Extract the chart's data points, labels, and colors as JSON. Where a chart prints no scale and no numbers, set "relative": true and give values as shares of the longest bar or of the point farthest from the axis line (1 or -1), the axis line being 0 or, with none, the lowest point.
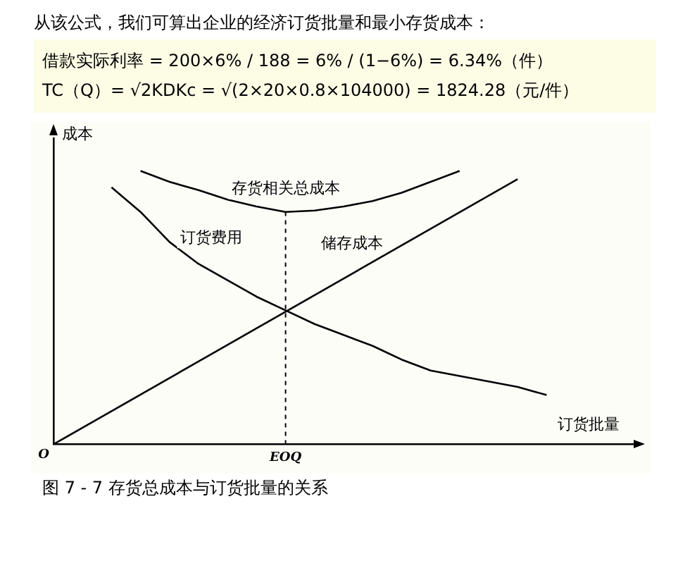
{
  "chart_data": {
    "type": "line",
    "relative": true,
    "title": "图 7 - 7 存货总成本与订货批量的关系",
    "annotations": [
      "从该公式，我们可算出企业的经济订货批量和最小存货成本：",
      "借款实际利率 = 200×6% / 188 = 6% / (1−6%) = 6.34%（件）",
      "TC（Q）= √2KDKc = √(2×20×0.8×104000) = 1824.28（元/件）",
      "O"
    ],
    "xlabel": "订货批量",
    "ylabel": "成本",
    "tick_labels": "x",
    "grid": false,
    "legend": false,
    "marker": "none",
    "categories": [
      null,
      null,
      null,
      null,
      null,
      null,
      null,
      null,
      null,
      null,
      null,
      null,
      null,
      null,
      null,
      null,
      null,
      null,
      null,
      null,
      null
    ],
    "series": [
      {
        "name": "存货相关总成本",
        "color": "#000000",
        "values": [
          null,
          null,
          null,
          1.0,
          0.96,
          0.93,
          0.895,
          0.87,
          0.85,
          0.855,
          0.87,
          0.89,
          0.92,
          0.96,
          1.0,
          null,
          null,
          null,
          null,
          null,
          null
        ]
      },
      {
        "name": "订货费用",
        "color": "#000000",
        "values": [
          null,
          null,
          0.94,
          0.85,
          0.74,
          0.66,
          0.6,
          0.54,
          0.49,
          0.44,
          0.4,
          0.36,
          0.31,
          0.27,
          0.25,
          0.23,
          0.21,
          0.18,
          null,
          null,
          null
        ]
      },
      {
        "name": "储存成本",
        "color": "#000000",
        "values": [
          0,
          null,
          null,
          null,
          null,
          null,
          null,
          null,
          null,
          null,
          null,
          null,
          null,
          null,
          null,
          null,
          0.97,
          null,
          null,
          null,
          null
        ]
      }
    ],
    "ref_lines": [
      {
        "axis": "x",
        "label": "EOQ",
        "line_style": "dashed",
        "color": "#000000"
      }
    ]
  }
}
